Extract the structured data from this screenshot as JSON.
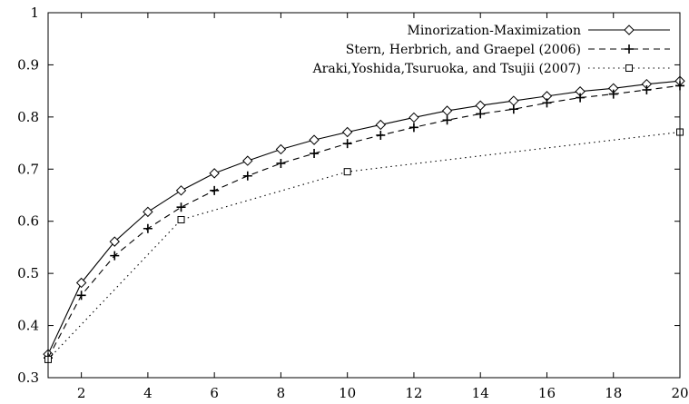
{
  "chart_data": {
    "type": "line",
    "xlim": [
      1,
      20
    ],
    "ylim": [
      0.3,
      1.0
    ],
    "xticks": [
      2,
      4,
      6,
      8,
      10,
      12,
      14,
      16,
      18,
      20
    ],
    "yticks": [
      0.3,
      0.4,
      0.5,
      0.6,
      0.7,
      0.8,
      0.9,
      1.0
    ],
    "xtick_labels": [
      "2",
      "4",
      "6",
      "8",
      "10",
      "12",
      "14",
      "16",
      "18",
      "20"
    ],
    "ytick_labels": [
      "0.3",
      "0.4",
      "0.5",
      "0.6",
      "0.7",
      "0.8",
      "0.9",
      "1"
    ],
    "grid": false,
    "legend_position": "top-right",
    "series": [
      {
        "name": "Minorization-Maximization",
        "line_style": "solid",
        "marker": "diamond",
        "x": [
          1,
          2,
          3,
          4,
          5,
          6,
          7,
          8,
          9,
          10,
          11,
          12,
          13,
          14,
          15,
          16,
          17,
          18,
          19,
          20
        ],
        "values": [
          0.345,
          0.482,
          0.561,
          0.618,
          0.659,
          0.692,
          0.716,
          0.738,
          0.756,
          0.771,
          0.785,
          0.799,
          0.812,
          0.822,
          0.831,
          0.84,
          0.849,
          0.855,
          0.863,
          0.869
        ]
      },
      {
        "name": "Stern, Herbrich, and Graepel (2006)",
        "line_style": "dashed",
        "marker": "plus",
        "x": [
          1,
          2,
          3,
          4,
          5,
          6,
          7,
          8,
          9,
          10,
          11,
          12,
          13,
          14,
          15,
          16,
          17,
          18,
          19,
          20
        ],
        "values": [
          0.338,
          0.458,
          0.534,
          0.586,
          0.627,
          0.659,
          0.687,
          0.711,
          0.73,
          0.749,
          0.765,
          0.78,
          0.794,
          0.806,
          0.815,
          0.827,
          0.837,
          0.844,
          0.852,
          0.86
        ]
      },
      {
        "name": "Araki,Yoshida,Tsuruoka, and Tsujii (2007)",
        "line_style": "dotted",
        "marker": "square",
        "x": [
          1,
          5,
          10,
          20
        ],
        "values": [
          0.335,
          0.603,
          0.695,
          0.771
        ]
      }
    ]
  }
}
